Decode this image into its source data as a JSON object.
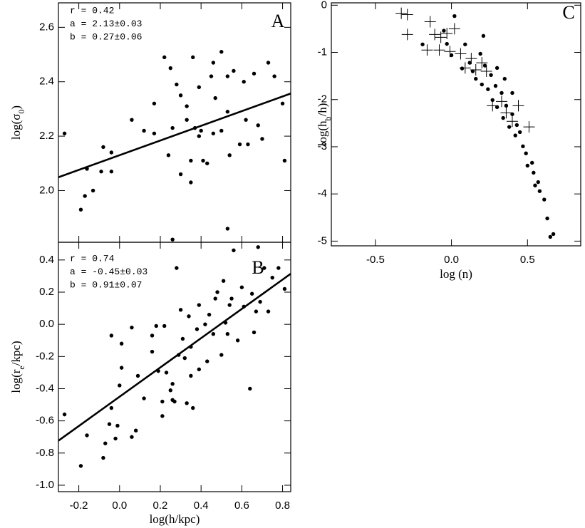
{
  "chart_data": [
    {
      "type": "scatter",
      "panel": "A",
      "ylabel": [
        "log(σ",
        "0",
        ")"
      ],
      "annotations": [
        "r = 0.42",
        "a = 2.13±0.03",
        "b = 0.27±0.06"
      ],
      "xlim": [
        -0.3,
        0.84
      ],
      "ylim": [
        1.81,
        2.69
      ],
      "xticks": [
        -0.2,
        0,
        0.2,
        0.4,
        0.6,
        0.8
      ],
      "yticks": [
        {
          "value": 2,
          "label": "2.0"
        },
        2.2,
        2.4,
        2.6
      ],
      "fit_line": {
        "intercept": 2.13,
        "slope": 0.27
      },
      "series": [
        {
          "color": "#000000",
          "marker": "dot",
          "x": [
            -0.27,
            -0.16,
            -0.19,
            -0.09,
            -0.08,
            -0.17,
            -0.13,
            -0.04,
            -0.04,
            0.06,
            0.12,
            0.17,
            0.17,
            0.22,
            0.25,
            0.24,
            0.26,
            0.26,
            0.28,
            0.3,
            0.3,
            0.33,
            0.33,
            0.35,
            0.35,
            0.36,
            0.37,
            0.39,
            0.39,
            0.41,
            0.43,
            0.45,
            0.46,
            0.47,
            0.5,
            0.5,
            0.53,
            0.53,
            0.53,
            0.54,
            0.56,
            0.61,
            0.62,
            0.63,
            0.66,
            0.68,
            0.7,
            0.73,
            0.76,
            0.8,
            0.81,
            0.46,
            0.4,
            0.59
          ],
          "values": [
            2.21,
            2.08,
            1.93,
            2.07,
            2.16,
            1.98,
            2.0,
            2.07,
            2.14,
            2.26,
            2.22,
            2.32,
            2.21,
            2.49,
            2.45,
            2.13,
            2.23,
            1.82,
            2.39,
            2.35,
            2.06,
            2.31,
            2.26,
            2.03,
            2.11,
            2.49,
            2.23,
            2.38,
            2.2,
            2.11,
            2.1,
            2.42,
            2.21,
            2.34,
            2.51,
            2.22,
            2.42,
            2.29,
            1.86,
            2.13,
            2.44,
            2.4,
            2.26,
            2.17,
            2.43,
            2.24,
            2.19,
            2.47,
            2.42,
            2.32,
            2.11,
            2.47,
            2.22,
            2.17
          ]
        }
      ]
    },
    {
      "type": "scatter",
      "panel": "B",
      "xlabel": [
        "log(h/kpc)"
      ],
      "ylabel": [
        "log(r",
        "e",
        "/kpc)"
      ],
      "annotations": [
        "r = 0.74",
        "a = -0.45±0.03",
        "b = 0.91±0.07"
      ],
      "xlim": [
        -0.3,
        0.84
      ],
      "ylim": [
        -1.04,
        0.51
      ],
      "xticks": [
        -0.2,
        {
          "value": 0,
          "label": "0.0"
        },
        0.2,
        0.4,
        0.6,
        0.8
      ],
      "yticks": [
        {
          "value": -1,
          "label": "-1.0"
        },
        -0.8,
        -0.6,
        -0.4,
        -0.2,
        {
          "value": 0,
          "label": "0.0"
        },
        0.2,
        0.4
      ],
      "fit_line": {
        "intercept": -0.45,
        "slope": 0.91
      },
      "series": [
        {
          "color": "#000000",
          "marker": "dot",
          "x": [
            -0.27,
            -0.19,
            -0.16,
            -0.08,
            -0.07,
            -0.05,
            -0.04,
            -0.04,
            -0.02,
            -0.01,
            0.0,
            0.01,
            0.01,
            0.06,
            0.08,
            0.06,
            0.09,
            0.12,
            0.16,
            0.16,
            0.18,
            0.19,
            0.21,
            0.21,
            0.22,
            0.23,
            0.25,
            0.26,
            0.26,
            0.27,
            0.28,
            0.29,
            0.3,
            0.31,
            0.32,
            0.33,
            0.34,
            0.35,
            0.35,
            0.36,
            0.38,
            0.39,
            0.39,
            0.42,
            0.43,
            0.44,
            0.46,
            0.47,
            0.48,
            0.5,
            0.51,
            0.52,
            0.53,
            0.54,
            0.55,
            0.56,
            0.58,
            0.6,
            0.61,
            0.64,
            0.65,
            0.66,
            0.67,
            0.68,
            0.69,
            0.71,
            0.73,
            0.75,
            0.78,
            0.81
          ],
          "values": [
            -0.56,
            -0.88,
            -0.69,
            -0.83,
            -0.74,
            -0.62,
            -0.52,
            -0.07,
            -0.71,
            -0.63,
            -0.38,
            -0.27,
            -0.12,
            -0.7,
            -0.66,
            -0.02,
            -0.32,
            -0.46,
            -0.17,
            -0.07,
            -0.01,
            -0.29,
            -0.57,
            -0.48,
            -0.01,
            -0.3,
            -0.41,
            -0.47,
            -0.37,
            -0.48,
            0.35,
            -0.19,
            0.09,
            -0.09,
            -0.21,
            -0.49,
            0.05,
            -0.32,
            -0.14,
            -0.52,
            -0.03,
            -0.28,
            0.12,
            0.0,
            -0.23,
            0.06,
            -0.06,
            0.16,
            0.2,
            -0.19,
            0.27,
            0.01,
            -0.06,
            0.12,
            0.16,
            0.46,
            -0.1,
            0.23,
            0.11,
            -0.4,
            0.19,
            -0.05,
            0.08,
            0.48,
            0.14,
            0.35,
            0.08,
            0.29,
            0.35,
            0.22
          ]
        }
      ]
    },
    {
      "type": "scatter",
      "panel": "C",
      "xlabel": [
        "log (n)"
      ],
      "ylabel": [
        "log(h",
        "b",
        "/h)"
      ],
      "xlim": [
        -0.79,
        0.85
      ],
      "ylim": [
        -5.1,
        0.05
      ],
      "xticks": [
        -0.5,
        {
          "value": 0,
          "label": "0.0"
        },
        0.5
      ],
      "yticks": [
        -5,
        -4,
        -3,
        -2,
        -1,
        0
      ],
      "series": [
        {
          "color": "#000000",
          "marker": "dot",
          "x": [
            -0.19,
            -0.05,
            -0.03,
            0.02,
            0.0,
            0.07,
            0.09,
            0.12,
            0.14,
            0.16,
            0.19,
            0.2,
            0.22,
            0.24,
            0.26,
            0.27,
            0.29,
            0.3,
            0.33,
            0.34,
            0.36,
            0.38,
            0.4,
            0.42,
            0.43,
            0.45,
            0.47,
            0.49,
            0.5,
            0.53,
            0.54,
            0.55,
            0.57,
            0.58,
            0.61,
            0.63,
            0.65,
            0.67,
            0.21,
            0.3,
            0.35,
            0.4
          ],
          "values": [
            -0.83,
            -0.54,
            -0.82,
            -0.23,
            -1.06,
            -1.34,
            -0.83,
            -1.22,
            -1.4,
            -1.56,
            -1.03,
            -1.68,
            -1.28,
            -1.78,
            -1.48,
            -2.01,
            -1.71,
            -2.16,
            -1.86,
            -2.39,
            -2.13,
            -2.58,
            -2.31,
            -2.76,
            -2.54,
            -2.69,
            -2.99,
            -3.14,
            -3.4,
            -3.34,
            -3.55,
            -3.82,
            -3.75,
            -3.94,
            -4.12,
            -4.52,
            -4.91,
            -4.85,
            -0.65,
            -1.33,
            -1.56,
            -1.86
          ]
        },
        {
          "color": "#000000",
          "marker": "cross",
          "x": [
            -0.33,
            -0.29,
            -0.29,
            -0.14,
            -0.11,
            -0.07,
            -0.01,
            -0.03,
            0.06,
            0.09,
            0.13,
            0.16,
            0.2,
            0.23,
            0.27,
            0.33,
            0.36,
            0.4,
            0.44,
            0.51,
            0.02,
            -0.08,
            -0.16
          ],
          "values": [
            -0.17,
            -0.62,
            -0.2,
            -0.35,
            -0.62,
            -0.68,
            -0.98,
            -0.6,
            -1.03,
            -1.33,
            -1.13,
            -1.37,
            -1.22,
            -1.4,
            -2.13,
            -2.04,
            -2.28,
            -2.46,
            -2.13,
            -2.58,
            -0.5,
            -0.95,
            -0.95
          ]
        }
      ]
    }
  ]
}
